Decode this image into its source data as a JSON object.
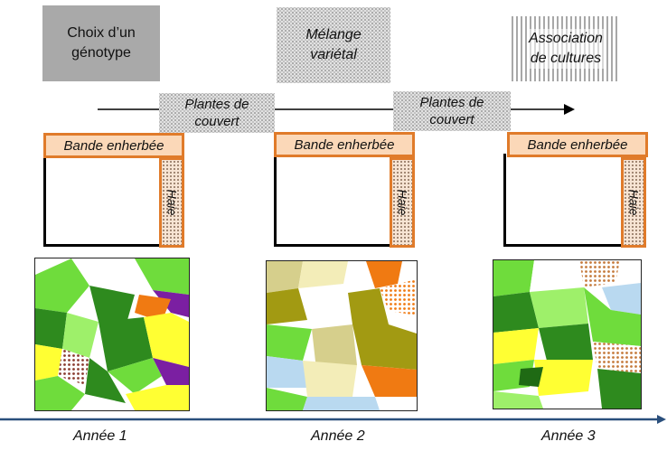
{
  "top_boxes": [
    {
      "label": "Choix d’un\ngénotype"
    },
    {
      "label": "Mélange\nvariétal"
    },
    {
      "label": "Association\nde cultures"
    }
  ],
  "cover_crops": [
    {
      "label": "Plantes de\ncouvert"
    },
    {
      "label": "Plantes de\ncouvert"
    }
  ],
  "bande_label": "Bande enherbée",
  "haie_label": "Haie",
  "years": [
    "Année 1",
    "Année 2",
    "Année 3"
  ],
  "colors": {
    "orange_border": "#e07b2a",
    "bande_fill": "#fbd8b8",
    "timeline": "#2a4f7c",
    "map_greens": [
      "#2e8a1e",
      "#6fdc3c",
      "#9ef06a",
      "#1f6a14"
    ],
    "map_accents": [
      "#ffff33",
      "#7b1fa2",
      "#f07a12",
      "#b9d9f0",
      "#a29a12",
      "#d6cf8c"
    ]
  }
}
